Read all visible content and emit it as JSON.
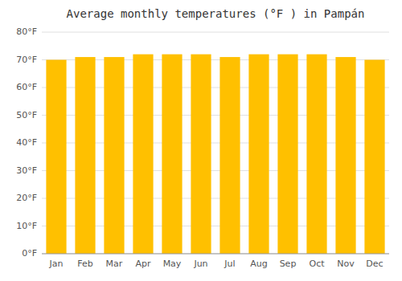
{
  "chart_data": {
    "type": "bar",
    "title": "Average monthly temperatures (°F ) in Pampán",
    "categories": [
      "Jan",
      "Feb",
      "Mar",
      "Apr",
      "May",
      "Jun",
      "Jul",
      "Aug",
      "Sep",
      "Oct",
      "Nov",
      "Dec"
    ],
    "values": [
      70,
      71,
      71,
      72,
      72,
      72,
      71,
      72,
      72,
      72,
      71,
      70
    ],
    "color": "#FFC000",
    "ylim": [
      0,
      80
    ],
    "yticks": [
      {
        "value": 0,
        "label": "0°F"
      },
      {
        "value": 10,
        "label": "10°F"
      },
      {
        "value": 20,
        "label": "20°F"
      },
      {
        "value": 30,
        "label": "30°F"
      },
      {
        "value": 40,
        "label": "40°F"
      },
      {
        "value": 50,
        "label": "50°F"
      },
      {
        "value": 60,
        "label": "60°F"
      },
      {
        "value": 70,
        "label": "70°F"
      },
      {
        "value": 80,
        "label": "80°F"
      }
    ],
    "grid": true
  }
}
